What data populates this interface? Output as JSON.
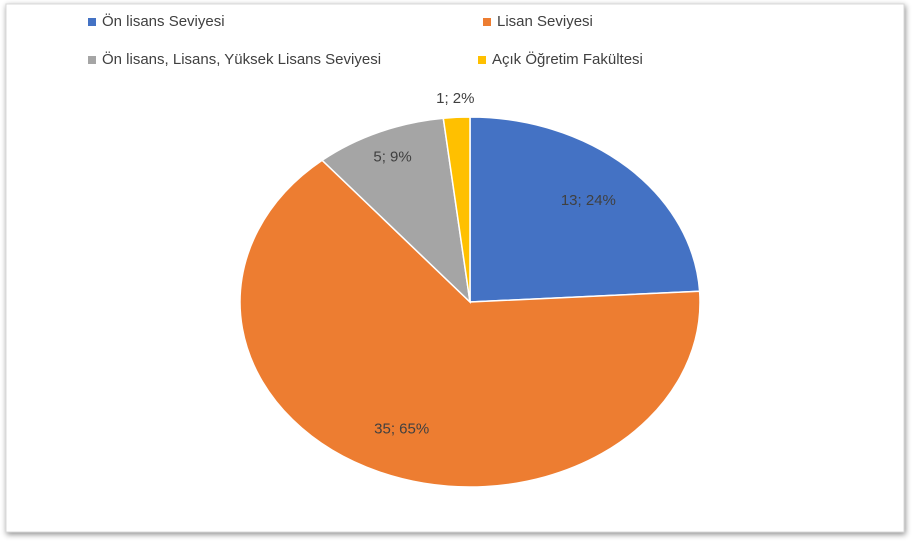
{
  "chart_data": {
    "type": "pie",
    "categories": [
      "Ön lisans Seviyesi",
      "Lisan Seviyesi",
      "Ön lisans, Lisans, Yüksek Lisans Seviyesi",
      "Açık Öğretim Fakültesi"
    ],
    "values": [
      13,
      35,
      5,
      1
    ],
    "value_labels": [
      "13; 24%",
      "35; 65%",
      "5; 9%",
      "1; 2%"
    ],
    "colors": [
      "#4472c4",
      "#ed7d31",
      "#a5a5a5",
      "#ffc000"
    ],
    "legend": "top"
  }
}
